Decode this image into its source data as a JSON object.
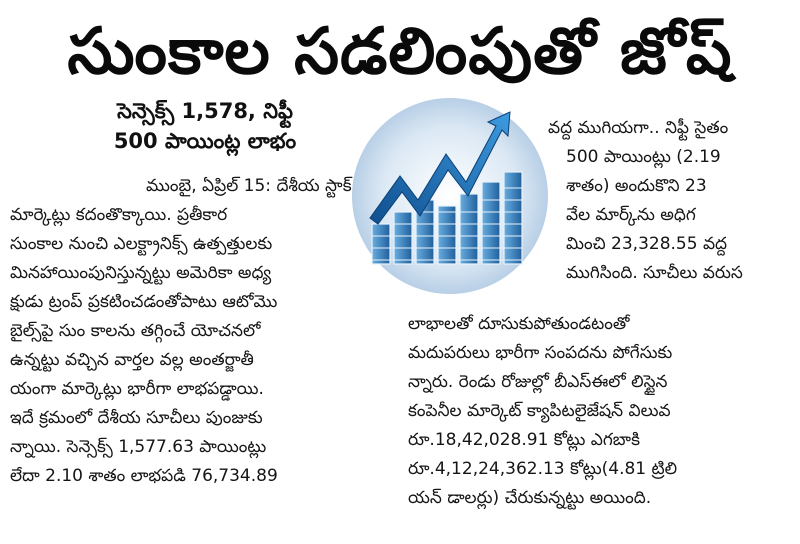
{
  "headline": "సుంకాల సడలింపుతో జోష్",
  "subheadline": {
    "line1": "సెన్సెక్స్ 1,578, నిఫ్టీ",
    "line2": "500 పాయింట్ల లాభం"
  },
  "left_column": [
    "ముంబై, ఏప్రిల్ 15: దేశీయ స్టాక్",
    "మార్కెట్లు కదంతొక్కాయి. ప్రతీకార",
    "సుంకాల నుంచి ఎలక్ట్రానిక్స్ ఉత్పత్తులకు",
    "మినహాయింపునిస్తున్నట్టు అమెరికా అధ్య",
    "క్షుడు ట్రంప్ ప్రకటించడంతోపాటు ఆటోమొ",
    "బైల్స్‌పై సుం కాలను తగ్గించే యోచనలో",
    "ఉన్నట్టు వచ్చిన వార్తల వల్ల అంతర్జాతీ",
    "యంగా మార్కెట్లు భారీగా లాభపడ్డాయి.",
    "ఇదే క్రమంలో దేశీయ సూచీలు పుంజుకు",
    "న్నాయి. సెన్సెక్స్ 1,577.63 పాయింట్లు",
    "లేదా 2.10 శాతం లాభపడి 76,734.89"
  ],
  "right_column_top": [
    "వద్ద ముగియగా.. నిఫ్టీ సైతం",
    "500 పాయింట్లు (2.19",
    "శాతం) అందుకొని 23",
    "వేల మార్క్‌ను అధిగ",
    "మించి 23,328.55 వద్ద",
    "ముగిసింది. సూచీలు వరుస"
  ],
  "right_column_bottom": [
    "లాభాలతో దూసుకుపోతుండటంతో",
    "మదుపరులు భారీగా సంపదను పోగేసుకు",
    "న్నారు. రెండు రోజుల్లో బీఎస్ఈలో లిస్టైన",
    "కంపెనీల మార్కెట్ క్యాపిటలైజేషన్ విలువ",
    "రూ.18,42,028.91 కోట్లు ఎగబాకి",
    "రూ.4,12,24,362.13 కోట్లు(4.81 ట్రిలి",
    "యన్ డాలర్లు) చేరుకున్నట్టు అయింది."
  ],
  "figure": {
    "icon": "stock-chart-icon",
    "colors": {
      "background": "#d9e6f2",
      "bars": "#3a86c8",
      "arrow": "#1f6fc0"
    }
  }
}
